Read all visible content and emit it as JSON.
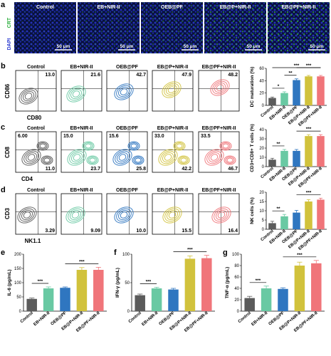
{
  "panel_letters": {
    "a": "a",
    "b": "b",
    "c": "c",
    "d": "d",
    "e": "e",
    "f": "f",
    "g": "g"
  },
  "colors": {
    "control": "#5b5b5b",
    "eb_nir": "#69c9a3",
    "oeb_pf": "#2f76c0",
    "ebp_nir": "#d1c23c",
    "ebpf_nir": "#f0757a"
  },
  "micrographs": {
    "titles": [
      "Control",
      "EB+NIR-II",
      "OEB@PF",
      "EB@P+NIR-II",
      "EB@PF+NIR-II"
    ],
    "side_label_crt": "CRT",
    "side_label_dapi": "DAPI",
    "scale_bar": "50 μm"
  },
  "flow_b": {
    "y_label": "CD86",
    "x_label": "CD80",
    "titles": [
      "Control",
      "EB+NIR-II",
      "OEB@PF",
      "EB@P+NIR-II",
      "EB@PF+NIR-II"
    ],
    "values": [
      "13.0",
      "21.6",
      "42.7",
      "47.9",
      "48.2"
    ]
  },
  "flow_c": {
    "y_label": "CD8",
    "x_label": "CD4",
    "titles": [
      "Control",
      "EB+NIR-II",
      "OEB@PF",
      "EB@P+NIR-II",
      "EB@PF+NIR-II"
    ],
    "top_left": [
      "6.00",
      "15.0",
      "15.6",
      "33.0",
      "33.5"
    ],
    "bottom_right": [
      "11.0",
      "23.7",
      "25.8",
      "42.2",
      "46.7"
    ]
  },
  "flow_d": {
    "y_label": "CD3",
    "x_label": "NK1.1",
    "titles": [
      "Control",
      "EB+NIR-II",
      "OEB@PF",
      "EB@P+NIR-II",
      "EB@PF+NIR-II"
    ],
    "values": [
      "3.29",
      "9.09",
      "10.0",
      "15.5",
      "16.4"
    ]
  },
  "chart_data": [
    {
      "type": "bar",
      "panel": "b",
      "categories": [
        "Control",
        "EB+NIR-II",
        "OEB@PF",
        "EB@P+NIR-II",
        "EB@PF+NIR-II"
      ],
      "values": [
        12,
        20,
        41,
        47,
        47
      ],
      "errors": [
        1.5,
        2,
        2,
        1.5,
        1.5
      ],
      "ylabel": "DC maturation (%)",
      "ylim": [
        0,
        60
      ],
      "yticks": [
        "0",
        "20",
        "40",
        "60"
      ],
      "significance": [
        [
          "*",
          0,
          1
        ],
        [
          "**",
          1,
          2
        ],
        [
          "***",
          2,
          4
        ],
        [
          "***",
          0,
          4
        ]
      ]
    },
    {
      "type": "bar",
      "panel": "c",
      "categories": [
        "Control",
        "EB+NIR-II",
        "OEB@PF",
        "EB@P+NIR-II",
        "EB@PF+NIR-II"
      ],
      "values": [
        7.5,
        17,
        17,
        33,
        33
      ],
      "errors": [
        1.5,
        1.5,
        1.5,
        1.5,
        1.5
      ],
      "ylabel": "CD3+CD8+ T cells (%)",
      "ylim": [
        0,
        40
      ],
      "yticks": [
        "0",
        "10",
        "20",
        "30",
        "40"
      ],
      "significance": [
        [
          "**",
          0,
          1
        ],
        [
          "***",
          2,
          4
        ]
      ]
    },
    {
      "type": "bar",
      "panel": "d",
      "categories": [
        "Control",
        "EB+NIR-II",
        "OEB@PF",
        "EB@P+NIR-II",
        "EB@PF+NIR-II"
      ],
      "values": [
        3.3,
        7,
        9,
        15,
        16
      ],
      "errors": [
        1,
        1,
        1.2,
        1,
        0.8
      ],
      "ylabel": "NK cells (%)",
      "ylim": [
        0,
        20
      ],
      "yticks": [
        "0",
        "5",
        "10",
        "15",
        "20"
      ],
      "significance": [
        [
          "**",
          0,
          1
        ],
        [
          "***",
          2,
          4
        ]
      ]
    },
    {
      "type": "bar",
      "panel": "e",
      "categories": [
        "Control",
        "EB+NIR-II",
        "OEB@PF",
        "EB@P+NIR-II",
        "EB@PF+NIR-II"
      ],
      "values": [
        43,
        80,
        82,
        145,
        145
      ],
      "errors": [
        3,
        5,
        3,
        8,
        9
      ],
      "ylabel": "IL-6 (pg/mL)",
      "ylim": [
        0,
        200
      ],
      "yticks": [
        "0",
        "50",
        "100",
        "150",
        "200"
      ],
      "significance": [
        [
          "***",
          0,
          1
        ],
        [
          "***",
          2,
          4
        ]
      ]
    },
    {
      "type": "bar",
      "panel": "f",
      "categories": [
        "Control",
        "EB+NIR-II",
        "OEB@PF",
        "EB@P+NIR-II",
        "EB@PF+NIR-II"
      ],
      "values": [
        28,
        40,
        38,
        92,
        93
      ],
      "errors": [
        2,
        2,
        2,
        5,
        5
      ],
      "ylabel": "IFN-γ (pg/mL)",
      "ylim": [
        0,
        100
      ],
      "yticks": [
        "0",
        "50",
        "100"
      ],
      "significance": [
        [
          "***",
          0,
          1
        ],
        [
          "***",
          2,
          4
        ]
      ]
    },
    {
      "type": "bar",
      "panel": "g",
      "categories": [
        "Control",
        "EB+NIR-II",
        "OEB@PF",
        "EB@P+NIR-II",
        "EB@PF+NIR-II"
      ],
      "values": [
        23,
        40,
        39,
        80,
        84
      ],
      "errors": [
        3,
        4,
        2,
        6,
        5
      ],
      "ylabel": "TNF-α (pg/mL)",
      "ylim": [
        0,
        100
      ],
      "yticks": [
        "0",
        "20",
        "40",
        "60",
        "80",
        "100"
      ],
      "significance": [
        [
          "***",
          0,
          1
        ],
        [
          "***",
          2,
          4
        ]
      ]
    }
  ]
}
